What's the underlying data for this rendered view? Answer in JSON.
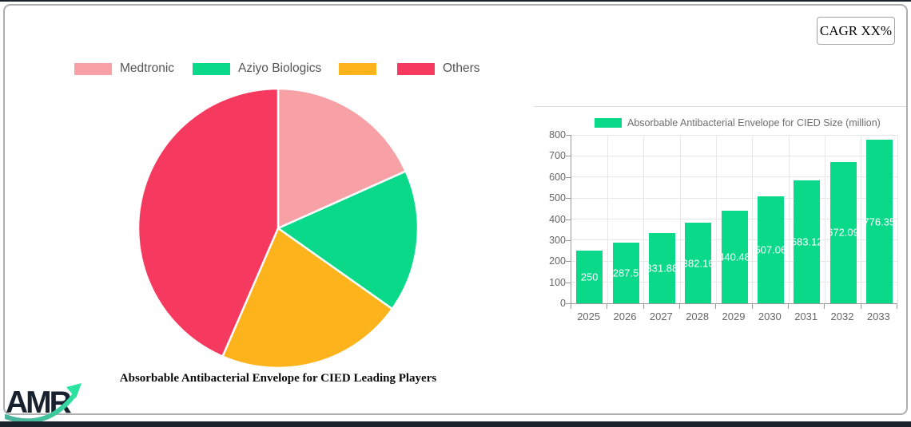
{
  "cagr_badge": {
    "label": "CAGR XX%"
  },
  "logo": {
    "text": "AMR"
  },
  "colors": {
    "pink": "#f7a1a7",
    "green": "#0bd98a",
    "orange": "#fcb31c",
    "red": "#f5395f",
    "grid": "#e7e7e7",
    "axis_line": "#999999",
    "axis_text": "#666666",
    "legend_text": "#555555",
    "dark_edge": "#1b222c"
  },
  "chart_data": [
    {
      "type": "pie",
      "title": "Absorbable Antibacterial Envelope for CIED Leading Players",
      "legend_position": "top",
      "segments": [
        {
          "label": "Medtronic",
          "value": 18.3,
          "color": "#f7a1a7"
        },
        {
          "label": "Aziyo Biologics",
          "value": 16.5,
          "color": "#0bd98a"
        },
        {
          "label": "",
          "value": 21.7,
          "color": "#fcb31c"
        },
        {
          "label": "Others",
          "value": 43.5,
          "color": "#f5395f"
        }
      ]
    },
    {
      "type": "bar",
      "legend_label": "Absorbable Antibacterial Envelope for CIED Size (million)",
      "categories": [
        "2025",
        "2026",
        "2027",
        "2028",
        "2029",
        "2030",
        "2031",
        "2032",
        "2033"
      ],
      "values": [
        250,
        287.5,
        331.88,
        382.16,
        440.48,
        507.06,
        583.12,
        672.09,
        776.35
      ],
      "value_labels": [
        "250",
        "287.5",
        "331.88",
        "382.16",
        "440.48",
        "507.06",
        "583.12",
        "672.09",
        "776.35"
      ],
      "bar_color": "#0bd98a",
      "ylim": [
        0,
        800
      ],
      "ytick_step": 100,
      "grid": true,
      "legend_position": "top"
    }
  ]
}
